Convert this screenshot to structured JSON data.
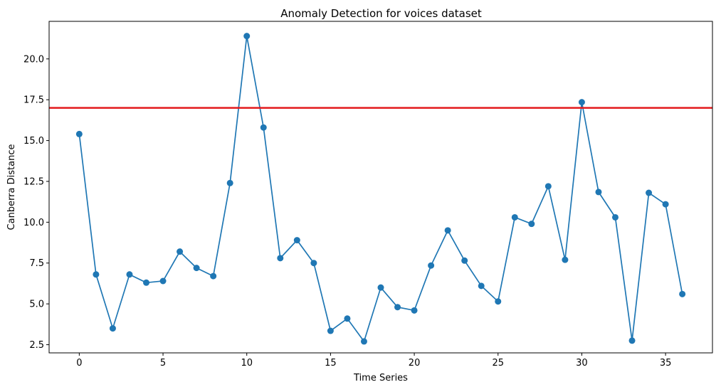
{
  "chart_data": {
    "type": "line",
    "title": "Anomaly Detection for voices dataset",
    "xlabel": "Time Series",
    "ylabel": "Canberra Distance",
    "xlim": [
      -1.8,
      37.8
    ],
    "ylim": [
      2.0,
      22.3
    ],
    "xticks": [
      0,
      5,
      10,
      15,
      20,
      25,
      30,
      35
    ],
    "xtick_labels": [
      "0",
      "5",
      "10",
      "15",
      "20",
      "25",
      "30",
      "35"
    ],
    "yticks": [
      2.5,
      5.0,
      7.5,
      10.0,
      12.5,
      15.0,
      17.5,
      20.0
    ],
    "ytick_labels": [
      "2.5",
      "5.0",
      "7.5",
      "10.0",
      "12.5",
      "15.0",
      "17.5",
      "20.0"
    ],
    "grid": false,
    "series": [
      {
        "color": "#1f77b4",
        "marker": "circle",
        "x": [
          0,
          1,
          2,
          3,
          4,
          5,
          6,
          7,
          8,
          9,
          10,
          11,
          12,
          13,
          14,
          15,
          16,
          17,
          18,
          19,
          20,
          21,
          22,
          23,
          24,
          25,
          26,
          27,
          28,
          29,
          30,
          31,
          32,
          33,
          34,
          35,
          36
        ],
        "values": [
          15.4,
          6.8,
          3.5,
          6.8,
          6.3,
          6.4,
          8.2,
          7.2,
          6.7,
          12.4,
          21.4,
          15.8,
          7.8,
          8.9,
          7.5,
          3.35,
          4.1,
          2.7,
          6.0,
          4.8,
          4.6,
          7.35,
          9.5,
          7.65,
          6.1,
          5.15,
          10.3,
          9.9,
          12.2,
          7.7,
          17.35,
          11.85,
          10.3,
          2.75,
          11.8,
          11.1,
          5.6
        ]
      }
    ],
    "threshold": {
      "y": 17.0,
      "color": "#e31a1c"
    }
  }
}
